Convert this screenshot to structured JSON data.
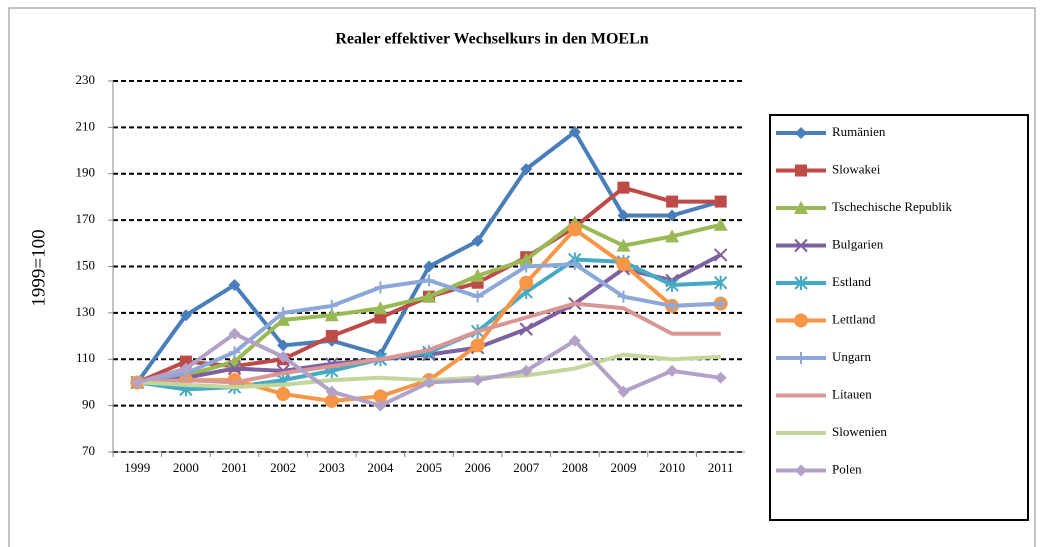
{
  "chart_data": {
    "type": "line",
    "title": "Realer effektiver Wechselkurs in den MOELn",
    "y_label": "1999=100",
    "categories": [
      "1999",
      "2000",
      "2001",
      "2002",
      "2003",
      "2004",
      "2005",
      "2006",
      "2007",
      "2008",
      "2009",
      "2010",
      "2011"
    ],
    "ylim": [
      70,
      230
    ],
    "yticks": [
      70,
      90,
      110,
      130,
      150,
      170,
      190,
      210,
      230
    ],
    "grid": true,
    "legend": "right",
    "series": [
      {
        "name": "Rumänien",
        "color": "#4a7ebb",
        "marker": "diamond",
        "values": [
          100,
          129,
          142,
          116,
          118,
          112,
          150,
          161,
          192,
          208,
          172,
          172,
          178
        ]
      },
      {
        "name": "Slowakei",
        "color": "#be4b48",
        "marker": "square",
        "values": [
          100,
          109,
          107,
          110,
          120,
          128,
          137,
          143,
          154,
          167,
          184,
          178,
          178
        ]
      },
      {
        "name": "Tschechische Republik",
        "color": "#98b954",
        "marker": "triangle",
        "values": [
          100,
          103,
          109,
          127,
          129,
          132,
          137,
          146,
          153,
          169,
          159,
          163,
          168
        ]
      },
      {
        "name": "Bulgarien",
        "color": "#7d60a0",
        "marker": "x",
        "values": [
          100,
          102,
          106,
          105,
          108,
          110,
          112,
          115,
          123,
          134,
          149,
          144,
          155
        ]
      },
      {
        "name": "Estland",
        "color": "#46aac5",
        "marker": "star",
        "values": [
          100,
          97,
          98,
          101,
          105,
          110,
          113,
          122,
          139,
          153,
          152,
          142,
          143
        ]
      },
      {
        "name": "Lettland",
        "color": "#f79646",
        "marker": "circle",
        "values": [
          100,
          101,
          101,
          95,
          92,
          94,
          101,
          116,
          143,
          166,
          151,
          133,
          134
        ]
      },
      {
        "name": "Ungarn",
        "color": "#8ca8d8",
        "marker": "plus",
        "values": [
          100,
          104,
          113,
          130,
          133,
          141,
          144,
          137,
          150,
          151,
          137,
          133,
          134
        ]
      },
      {
        "name": "Litauen",
        "color": "#d99694",
        "marker": "none",
        "values": [
          100,
          101,
          100,
          104,
          107,
          110,
          114,
          122,
          128,
          134,
          132,
          121,
          121
        ]
      },
      {
        "name": "Slowenien",
        "color": "#c3d69b",
        "marker": "none",
        "values": [
          100,
          99,
          98,
          99,
          101,
          102,
          101,
          102,
          103,
          106,
          112,
          110,
          111
        ]
      },
      {
        "name": "Polen",
        "color": "#b3a2c7",
        "marker": "diamond",
        "values": [
          100,
          106,
          121,
          111,
          96,
          90,
          100,
          101,
          105,
          118,
          96,
          105,
          102
        ]
      }
    ]
  }
}
